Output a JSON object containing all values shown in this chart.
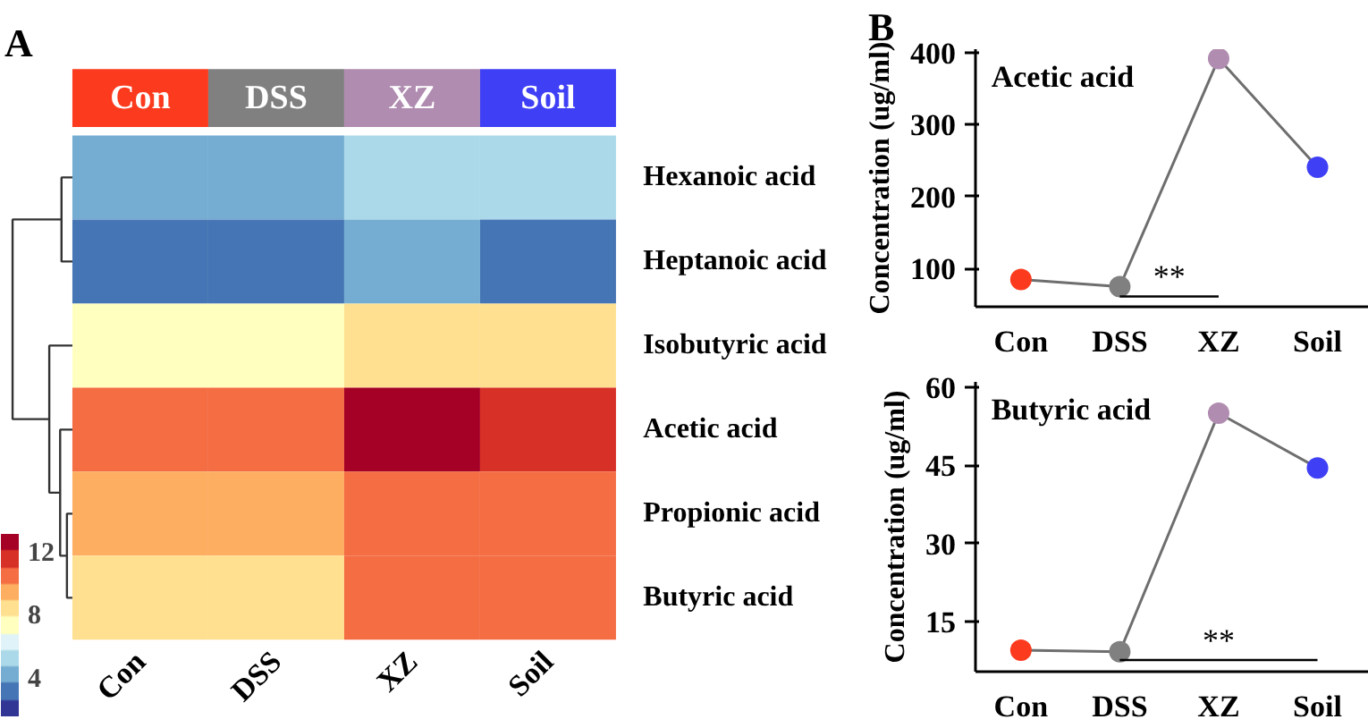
{
  "chart_data": [
    {
      "type": "heatmap",
      "annotations": [
        "A"
      ],
      "categories": [
        "Con",
        "DSS",
        "XZ",
        "Soil"
      ],
      "colors": [
        "#fc3a1d",
        "#808080",
        "#b08cb0",
        "#3f3ff5"
      ],
      "y_categories": [
        "Hexanoic acid",
        "Heptanoic acid",
        "Isobutyric acid",
        "Acetic acid",
        "Propionic acid",
        "Butyric acid"
      ],
      "cells": [
        [
          4.6,
          4.0,
          5.3,
          4.8
        ],
        [
          3.1,
          3.5,
          3.9,
          3.3
        ],
        [
          7.3,
          7.6,
          8.3,
          8.2
        ],
        [
          11.0,
          10.9,
          12.6,
          12.0
        ],
        [
          9.6,
          9.5,
          10.5,
          10.9
        ],
        [
          8.4,
          8.4,
          10.4,
          10.1
        ]
      ],
      "clim": [
        1.6,
        13.1
      ],
      "cticks": [
        4,
        8,
        12
      ]
    },
    {
      "type": "line",
      "title": "Acetic acid",
      "ylabel": "Concentration (ug/ml)",
      "annotations": [
        "B",
        "**"
      ],
      "categories": [
        "Con",
        "DSS",
        "XZ",
        "Soil"
      ],
      "series": [
        {
          "color": "#6e6e6e",
          "values": [
            85,
            75,
            392,
            241
          ]
        }
      ],
      "colors": [
        "#fc3a1d",
        "#808080",
        "#b08cb0",
        "#3f3ff5"
      ],
      "marker": "circle",
      "ylim": [
        47,
        405
      ],
      "yticks": [
        100,
        200,
        300,
        400
      ],
      "grid": false
    },
    {
      "type": "line",
      "title": "Butyric acid",
      "ylabel": "Concentration (ug/ml)",
      "annotations": [
        "**"
      ],
      "categories": [
        "Con",
        "DSS",
        "XZ",
        "Soil"
      ],
      "series": [
        {
          "color": "#6e6e6e",
          "values": [
            9.5,
            9.2,
            55,
            44.5
          ]
        }
      ],
      "colors": [
        "#fc3a1d",
        "#808080",
        "#b08cb0",
        "#3f3ff5"
      ],
      "marker": "circle",
      "ylim": [
        5.4,
        61
      ],
      "yticks": [
        15,
        30,
        45,
        60
      ],
      "grid": false
    }
  ]
}
